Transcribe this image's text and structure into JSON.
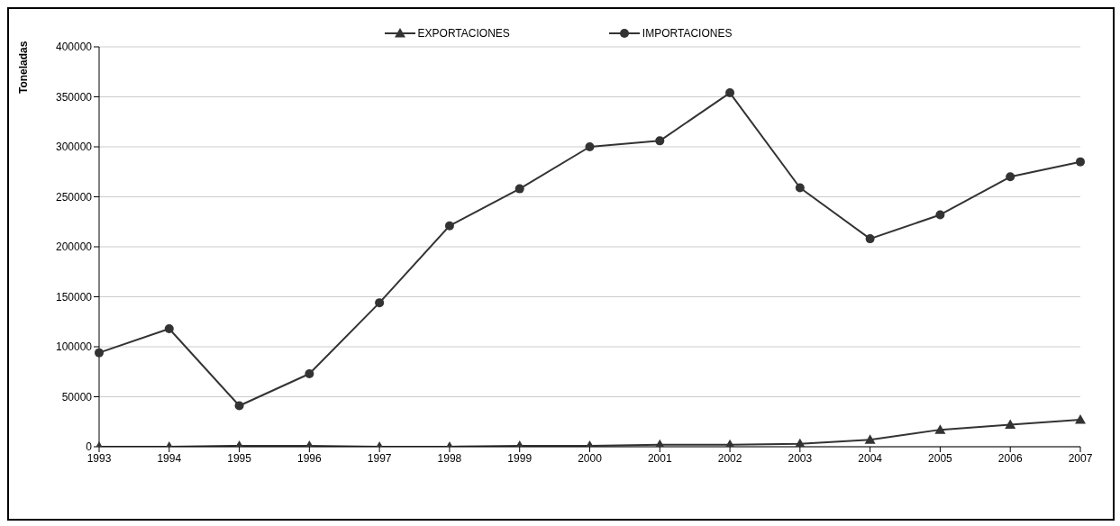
{
  "chart_data": {
    "type": "line",
    "ylabel": "Toneladas",
    "categories": [
      "1993",
      "1994",
      "1995",
      "1996",
      "1997",
      "1998",
      "1999",
      "2000",
      "2001",
      "2002",
      "2003",
      "2004",
      "2005",
      "2006",
      "2007"
    ],
    "series": [
      {
        "name": "EXPORTACIONES",
        "color": "#333333",
        "marker": "triangle",
        "values": [
          0,
          0,
          1000,
          1000,
          0,
          0,
          1000,
          1000,
          2000,
          2000,
          3000,
          7000,
          17000,
          22000,
          27000
        ]
      },
      {
        "name": "IMPORTACIONES",
        "color": "#333333",
        "marker": "circle",
        "values": [
          94000,
          118000,
          41000,
          73000,
          144000,
          221000,
          258000,
          300000,
          306000,
          354000,
          259000,
          208000,
          232000,
          270000,
          285000
        ]
      }
    ],
    "ylim": [
      0,
      400000
    ],
    "yticks": [
      0,
      50000,
      100000,
      150000,
      200000,
      250000,
      300000,
      350000,
      400000
    ],
    "grid": "y",
    "legend": "top",
    "line_style": "solid"
  }
}
